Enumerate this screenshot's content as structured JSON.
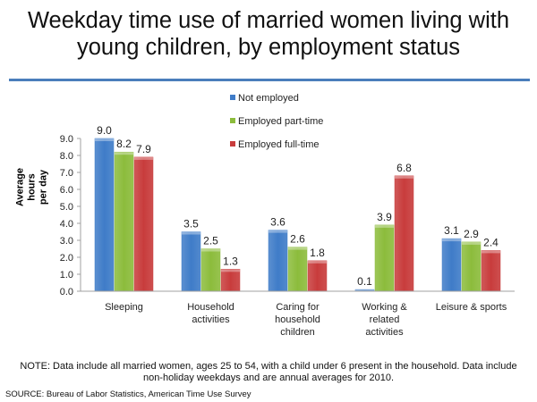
{
  "chart_data": {
    "type": "bar",
    "title": "Weekday time use of married women living with young children, by employment status",
    "title_lines": [
      "Weekday time use of married women living with",
      "young children, by employment status"
    ],
    "xlabel": "",
    "ylabel": "Average hours per day",
    "ylabel_lines": [
      "Average hours",
      "per day"
    ],
    "ylim": [
      0,
      9
    ],
    "yticks": [
      "0.0",
      "1.0",
      "2.0",
      "3.0",
      "4.0",
      "5.0",
      "6.0",
      "7.0",
      "8.0",
      "9.0"
    ],
    "grid": false,
    "legend_position": "top-center",
    "categories": [
      "Sleeping",
      "Household activities",
      "Caring for household children",
      "Working & related activities",
      "Leisure & sports"
    ],
    "category_lines": [
      [
        "Sleeping"
      ],
      [
        "Household",
        "activities"
      ],
      [
        "Caring for",
        "household",
        "children"
      ],
      [
        "Working &",
        "related",
        "activities"
      ],
      [
        "Leisure & sports"
      ]
    ],
    "series": [
      {
        "name": "Not employed",
        "color": "#3f7cc8",
        "values": [
          9.0,
          3.5,
          3.6,
          0.1,
          3.1
        ],
        "labels": [
          "9.0",
          "3.5",
          "3.6",
          "0.1",
          "3.1"
        ]
      },
      {
        "name": "Employed part-time",
        "color": "#8cbc3c",
        "values": [
          8.2,
          2.5,
          2.6,
          3.9,
          2.9
        ],
        "labels": [
          "8.2",
          "2.5",
          "2.6",
          "3.9",
          "2.9"
        ]
      },
      {
        "name": "Employed full-time",
        "color": "#c83c3c",
        "values": [
          7.9,
          1.3,
          1.8,
          6.8,
          2.4
        ],
        "labels": [
          "7.9",
          "1.3",
          "1.8",
          "6.8",
          "2.4"
        ]
      }
    ]
  },
  "note": "NOTE: Data include all married women, ages 25 to 54, with a child under 6 present in the household. Data include non-holiday weekdays and are annual averages for 2010.",
  "note_lines": [
    "NOTE: Data include all married women, ages 25 to 54, with a child under 6 present in the household. Data include",
    "non-holiday weekdays and are annual averages for 2010."
  ],
  "source": "SOURCE: Bureau of Labor Statistics, American Time Use Survey"
}
